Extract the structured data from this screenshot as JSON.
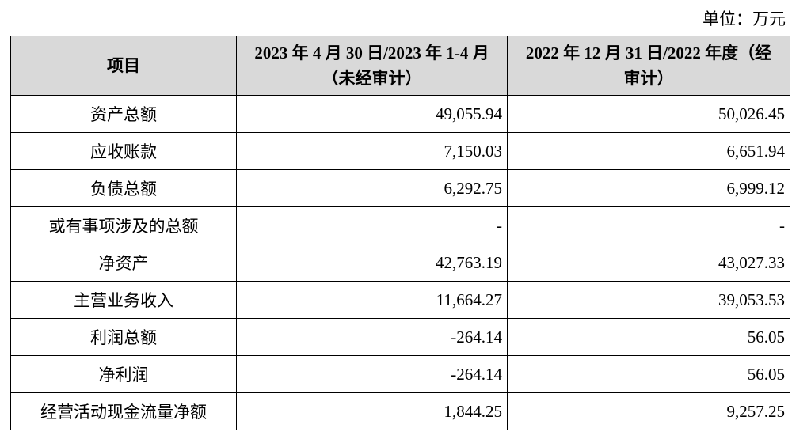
{
  "unit": "单位：万元",
  "table": {
    "headers": [
      "项目",
      "2023 年 4 月 30 日/2023 年 1-4 月（未经审计）",
      "2022 年 12 月 31 日/2022 年度（经审计）"
    ],
    "rows": [
      [
        "资产总额",
        "49,055.94",
        "50,026.45"
      ],
      [
        "应收账款",
        "7,150.03",
        "6,651.94"
      ],
      [
        "负债总额",
        "6,292.75",
        "6,999.12"
      ],
      [
        "或有事项涉及的总额",
        "-",
        "-"
      ],
      [
        "净资产",
        "42,763.19",
        "43,027.33"
      ],
      [
        "主营业务收入",
        "11,664.27",
        "39,053.53"
      ],
      [
        "利润总额",
        "-264.14",
        "56.05"
      ],
      [
        "净利润",
        "-264.14",
        "56.05"
      ],
      [
        "经营活动现金流量净额",
        "1,844.25",
        "9,257.25"
      ]
    ]
  }
}
